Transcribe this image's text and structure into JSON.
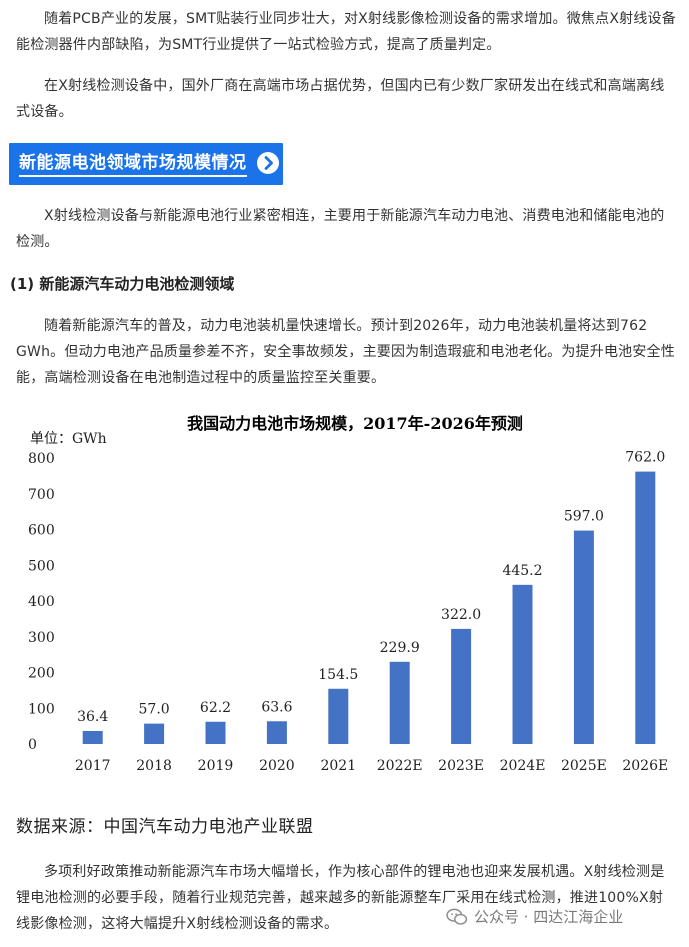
{
  "article": {
    "para_pcb": "随着PCB产业的发展，SMT贴装行业同步壮大，对X射线影像检测设备的需求增加。微焦点X射线设备能检测器件内部缺陷，为SMT行业提供了一站式检验方式，提高了质量判定。",
    "para_domestic": "在X射线检测设备中，国外厂商在高端市场占据优势，但国内已有少数厂家研发出在线式和高端离线式设备。",
    "section_title": "新能源电池领域市场规模情况",
    "para_battery_intro": "X射线检测设备与新能源电池行业紧密相连，主要用于新能源汽车动力电池、消费电池和储能电池的检测。",
    "subhead_ev": "(1) 新能源汽车动力电池检测领域",
    "para_ev": "随着新能源汽车的普及，动力电池装机量快速增长。预计到2026年，动力电池装机量将达到762 GWh。但动力电池产品质量参差不齐，安全事故频发，主要因为制造瑕疵和电池老化。为提升电池安全性能，高端检测设备在电池制造过程中的质量监控至关重要。",
    "source": "数据来源：中国汽车动力电池产业联盟",
    "para_policy": "多项利好政策推动新能源汽车市场大幅增长，作为核心部件的锂电池也迎来发展机遇。X射线检测是锂电池检测的必要手段，随着行业规范完善，越来越多的新能源整车厂采用在线式检测，推进100%X射线影像检测，这将大幅提升X射线检测设备的需求。"
  },
  "watermark": {
    "text": "公众号 · 四达江海企业",
    "icon": "wechat-icon"
  },
  "icons": {
    "section_arrow": "chevron-right-circle-icon"
  },
  "colors": {
    "banner": "#1a73e8",
    "bar": "#4472c4",
    "text": "#333333"
  },
  "chart_data": {
    "type": "bar",
    "title": "我国动力电池市场规模，2017年-2026年预测",
    "unit_label": "单位：GWh",
    "categories": [
      "2017",
      "2018",
      "2019",
      "2020",
      "2021",
      "2022E",
      "2023E",
      "2024E",
      "2025E",
      "2026E"
    ],
    "values": [
      36.4,
      57.0,
      62.2,
      63.6,
      154.5,
      229.9,
      322.0,
      445.2,
      597.0,
      762.0
    ],
    "value_labels": [
      "36.4",
      "57.0",
      "62.2",
      "63.6",
      "154.5",
      "229.9",
      "322.0",
      "445.2",
      "597.0",
      "762.0"
    ],
    "yticks": [
      0,
      100,
      200,
      300,
      400,
      500,
      600,
      700,
      800
    ],
    "ylim": [
      0,
      800
    ],
    "grid": false,
    "legend": "none"
  }
}
